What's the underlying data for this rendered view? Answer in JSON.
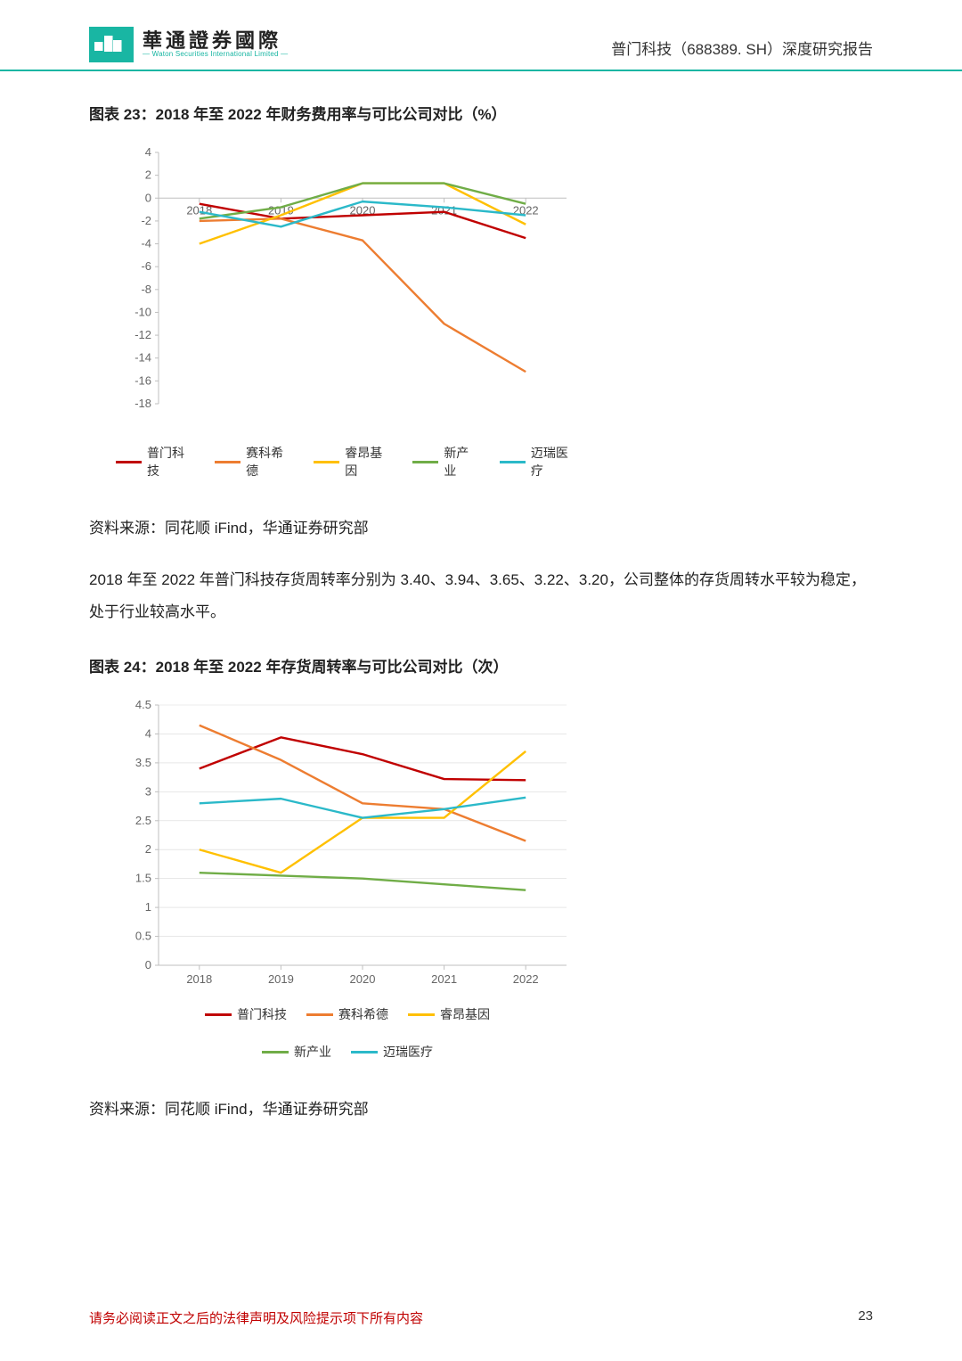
{
  "header": {
    "logo_cn": "華通證券國際",
    "logo_en": "— Waton Securities International Limited —",
    "right": "普门科技（688389. SH）深度研究报告"
  },
  "fig23": {
    "title": "图表 23：2018 年至 2022 年财务费用率与可比公司对比（%）",
    "type": "line",
    "categories": [
      "2018",
      "2019",
      "2020",
      "2021",
      "2022"
    ],
    "series": [
      {
        "name": "普门科技",
        "color": "#c00000",
        "values": [
          -0.5,
          -1.8,
          -1.5,
          -1.2,
          -3.5
        ]
      },
      {
        "name": "赛科希德",
        "color": "#ed7d31",
        "values": [
          -2.0,
          -1.8,
          -3.7,
          -11.0,
          -15.2
        ]
      },
      {
        "name": "睿昂基因",
        "color": "#ffc000",
        "values": [
          -4.0,
          -1.5,
          1.3,
          1.3,
          -2.3
        ]
      },
      {
        "name": "新产业",
        "color": "#70ad47",
        "values": [
          -1.8,
          -0.8,
          1.3,
          1.3,
          -0.5
        ]
      },
      {
        "name": "迈瑞医疗",
        "color": "#2bb9c9",
        "values": [
          -1.2,
          -2.5,
          -0.3,
          -0.8,
          -1.5
        ]
      }
    ],
    "ylim": [
      -18,
      4
    ],
    "ytick_step": 2,
    "axis_color": "#bfbfbf",
    "label_fontsize": 13,
    "background_color": "#ffffff",
    "line_width": 2.4
  },
  "source23": "资料来源：同花顺 iFind，华通证券研究部",
  "para1": "2018 年至 2022 年普门科技存货周转率分别为 3.40、3.94、3.65、3.22、3.20，公司整体的存货周转水平较为稳定，处于行业较高水平。",
  "fig24": {
    "title": "图表 24：2018 年至 2022 年存货周转率与可比公司对比（次）",
    "type": "line",
    "categories": [
      "2018",
      "2019",
      "2020",
      "2021",
      "2022"
    ],
    "series": [
      {
        "name": "普门科技",
        "color": "#c00000",
        "values": [
          3.4,
          3.94,
          3.65,
          3.22,
          3.2
        ]
      },
      {
        "name": "赛科希德",
        "color": "#ed7d31",
        "values": [
          4.15,
          3.55,
          2.8,
          2.7,
          2.15
        ]
      },
      {
        "name": "睿昂基因",
        "color": "#ffc000",
        "values": [
          2.0,
          1.6,
          2.55,
          2.55,
          3.7
        ]
      },
      {
        "name": "新产业",
        "color": "#70ad47",
        "values": [
          1.6,
          1.55,
          1.5,
          1.4,
          1.3
        ]
      },
      {
        "name": "迈瑞医疗",
        "color": "#2bb9c9",
        "values": [
          2.8,
          2.88,
          2.55,
          2.7,
          2.9
        ]
      }
    ],
    "ylim": [
      0,
      4.5
    ],
    "ytick_step": 0.5,
    "axis_color": "#bfbfbf",
    "label_fontsize": 13,
    "grid_color": "#d9d9d9",
    "background_color": "#ffffff",
    "line_width": 2.4
  },
  "source24": "资料来源：同花顺 iFind，华通证券研究部",
  "footer": {
    "warn": "请务必阅读正文之后的法律声明及风险提示项下所有内容",
    "page": "23"
  }
}
